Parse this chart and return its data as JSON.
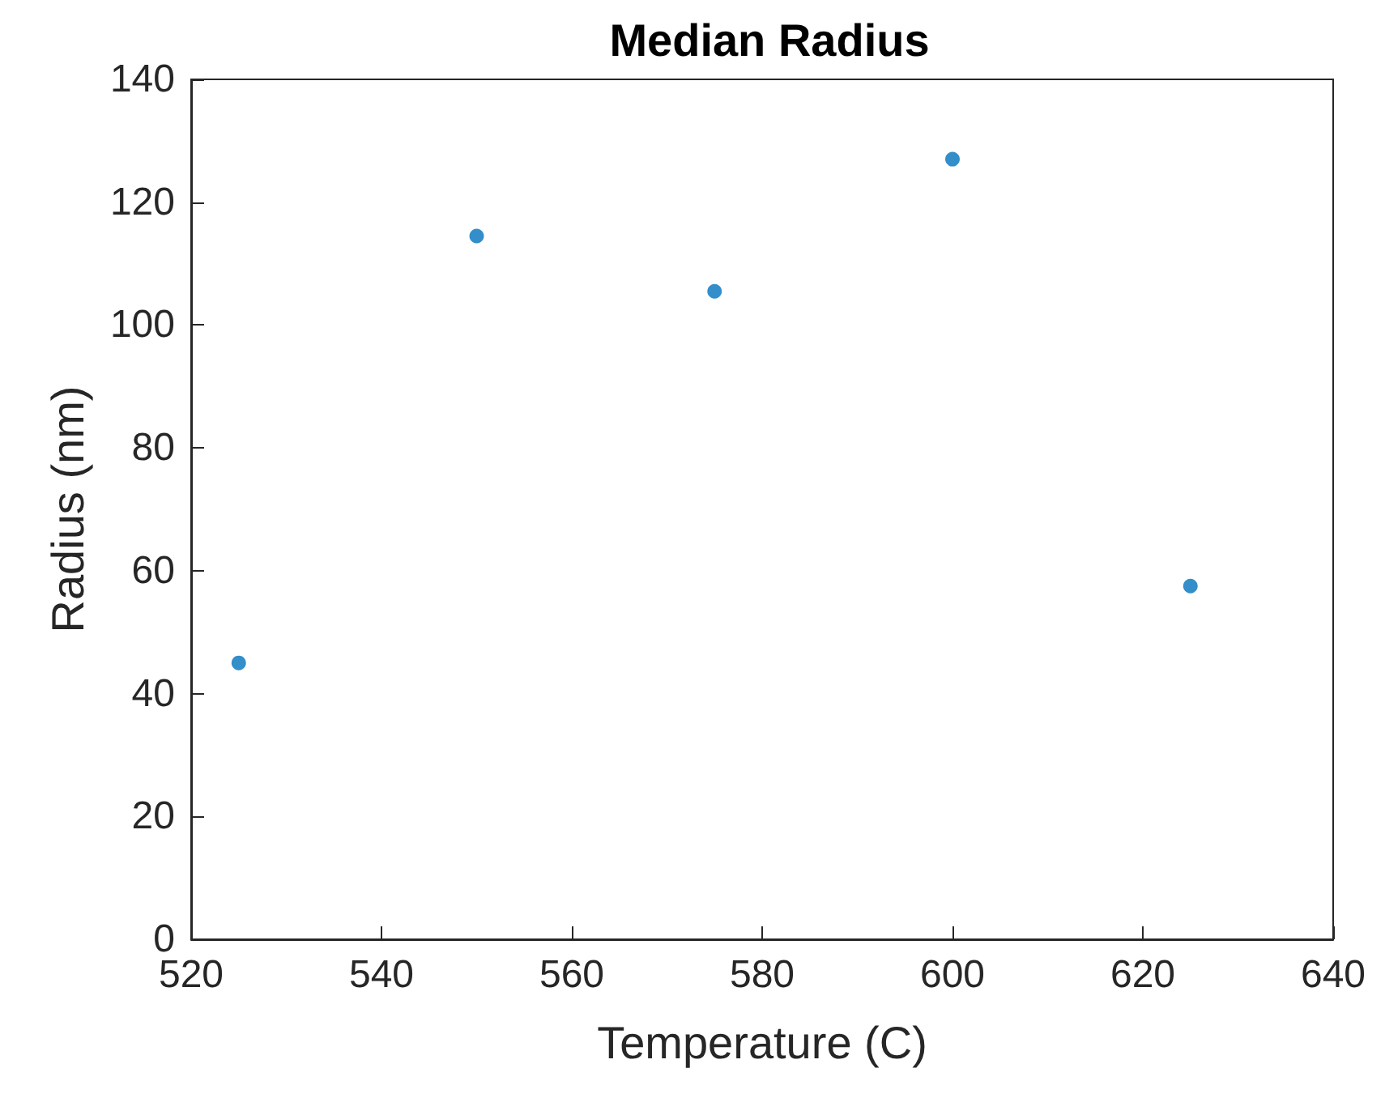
{
  "chart_data": {
    "type": "scatter",
    "title": "Median Radius",
    "xlabel": "Temperature (C)",
    "ylabel": "Radius (nm)",
    "x": [
      525,
      550,
      575,
      600,
      625
    ],
    "series": [
      {
        "color": "#0072bd",
        "values": [
          45,
          114.5,
          105.5,
          127,
          57.5
        ]
      }
    ],
    "xlim": [
      520,
      640
    ],
    "xticks": [
      520,
      540,
      560,
      580,
      600,
      620,
      640
    ],
    "ylim": [
      0,
      140
    ],
    "yticks": [
      0,
      20,
      40,
      60,
      80,
      100,
      120,
      140
    ],
    "grid": false,
    "marker": "circle"
  }
}
